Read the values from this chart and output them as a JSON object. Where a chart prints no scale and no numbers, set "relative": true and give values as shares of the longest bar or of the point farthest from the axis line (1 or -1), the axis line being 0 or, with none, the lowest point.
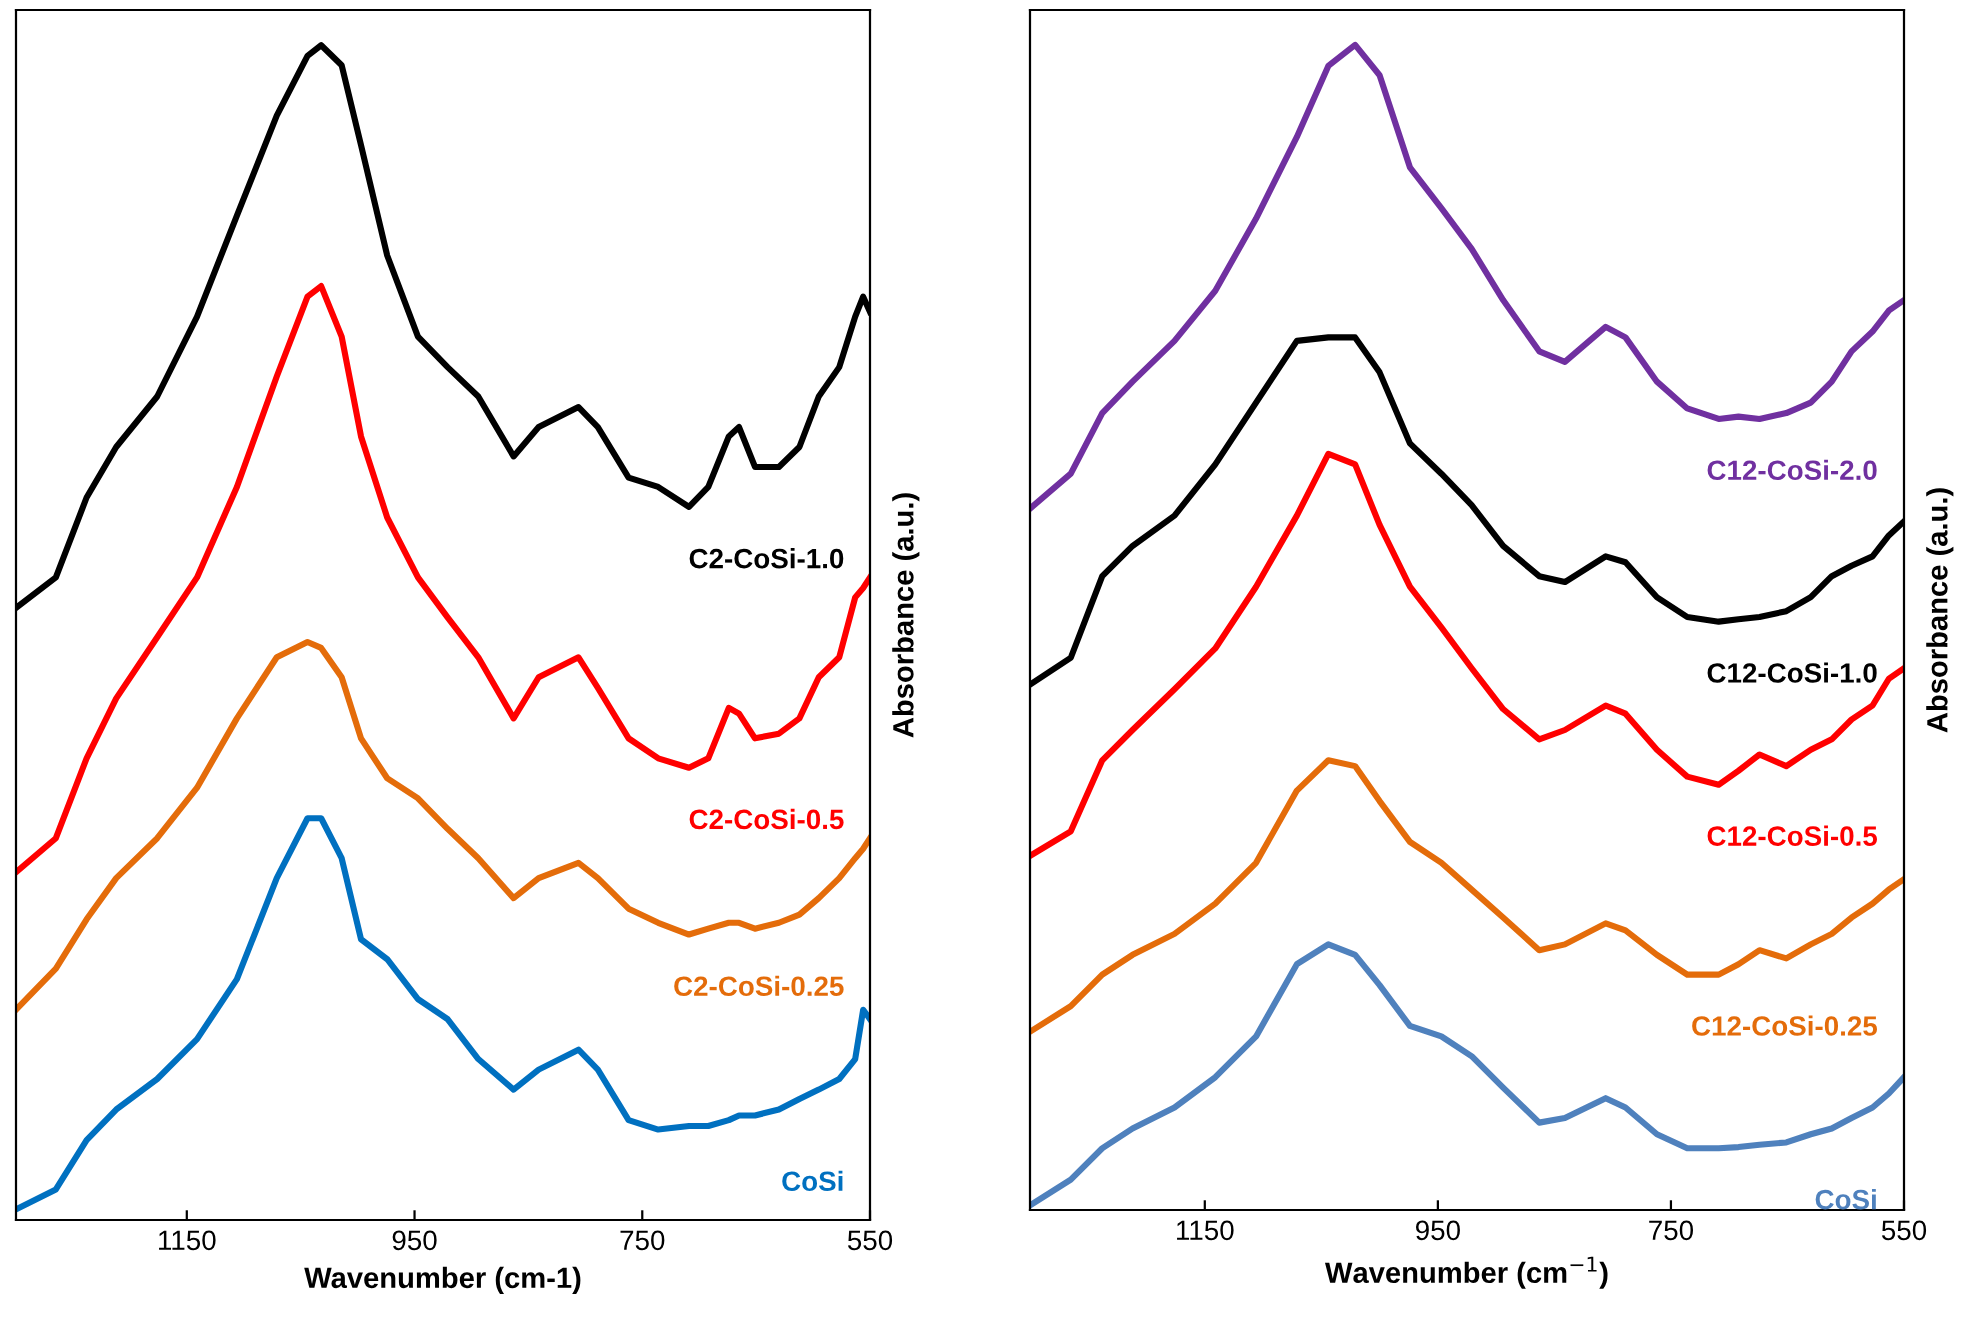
{
  "chart_data": [
    {
      "type": "line",
      "xlabel": "Wavenumber (cm-1)",
      "ylabel": "Absorbance (a.u.)",
      "relative": true,
      "xlim": [
        1300,
        550
      ],
      "xticks": [
        1150,
        950,
        750,
        550
      ],
      "grid": false,
      "legend": false,
      "line_style": "solid",
      "marker": "none",
      "tick_labels": "x",
      "series": [
        {
          "name": "C2-CoSi-1.0",
          "color": "#000000",
          "x": [
            1300,
            1265,
            1238,
            1212,
            1176,
            1141,
            1106,
            1071,
            1044,
            1032,
            1014,
            997,
            974,
            947,
            921,
            894,
            863,
            841,
            806,
            789,
            762,
            736,
            709,
            692,
            674,
            665,
            651,
            630,
            612,
            595,
            577,
            563,
            556,
            550
          ],
          "values": [
            0.521,
            0.547,
            0.615,
            0.658,
            0.701,
            0.769,
            0.855,
            0.94,
            0.991,
            1.0,
            0.983,
            0.915,
            0.821,
            0.752,
            0.726,
            0.701,
            0.65,
            0.675,
            0.692,
            0.675,
            0.632,
            0.624,
            0.607,
            0.624,
            0.667,
            0.675,
            0.641,
            0.641,
            0.658,
            0.701,
            0.726,
            0.769,
            0.786,
            0.773
          ]
        },
        {
          "name": "C2-CoSi-0.5",
          "color": "#ff0000",
          "x": [
            1300,
            1265,
            1238,
            1212,
            1176,
            1141,
            1106,
            1071,
            1044,
            1032,
            1014,
            997,
            974,
            947,
            921,
            894,
            863,
            841,
            806,
            789,
            762,
            736,
            709,
            692,
            674,
            665,
            651,
            630,
            612,
            595,
            577,
            563,
            556,
            550
          ],
          "values": [
            0.296,
            0.325,
            0.393,
            0.444,
            0.496,
            0.547,
            0.624,
            0.718,
            0.786,
            0.795,
            0.752,
            0.667,
            0.598,
            0.547,
            0.513,
            0.479,
            0.427,
            0.462,
            0.479,
            0.453,
            0.41,
            0.393,
            0.385,
            0.393,
            0.436,
            0.431,
            0.41,
            0.414,
            0.427,
            0.462,
            0.479,
            0.53,
            0.538,
            0.547
          ]
        },
        {
          "name": "C2-CoSi-0.25",
          "color": "#e46c0a",
          "x": [
            1300,
            1265,
            1238,
            1212,
            1176,
            1141,
            1106,
            1071,
            1044,
            1032,
            1014,
            997,
            974,
            947,
            921,
            894,
            863,
            841,
            806,
            789,
            762,
            736,
            709,
            692,
            674,
            665,
            651,
            630,
            612,
            595,
            577,
            563,
            556,
            550
          ],
          "values": [
            0.179,
            0.214,
            0.256,
            0.291,
            0.325,
            0.368,
            0.427,
            0.479,
            0.492,
            0.487,
            0.462,
            0.41,
            0.376,
            0.359,
            0.333,
            0.308,
            0.274,
            0.291,
            0.304,
            0.291,
            0.265,
            0.253,
            0.243,
            0.248,
            0.253,
            0.253,
            0.248,
            0.253,
            0.26,
            0.274,
            0.291,
            0.308,
            0.316,
            0.325
          ]
        },
        {
          "name": "CoSi",
          "color": "#0070c0",
          "x": [
            1300,
            1265,
            1238,
            1212,
            1176,
            1141,
            1106,
            1071,
            1044,
            1032,
            1014,
            997,
            974,
            947,
            921,
            894,
            863,
            841,
            806,
            789,
            762,
            736,
            709,
            692,
            674,
            665,
            651,
            630,
            612,
            595,
            577,
            563,
            556,
            550
          ],
          "values": [
            0.009,
            0.026,
            0.068,
            0.094,
            0.12,
            0.154,
            0.205,
            0.291,
            0.342,
            0.342,
            0.308,
            0.239,
            0.222,
            0.188,
            0.171,
            0.137,
            0.111,
            0.128,
            0.145,
            0.128,
            0.085,
            0.077,
            0.08,
            0.08,
            0.085,
            0.089,
            0.089,
            0.094,
            0.103,
            0.111,
            0.12,
            0.137,
            0.179,
            0.171
          ]
        }
      ]
    },
    {
      "type": "line",
      "xlabel": "Wavenumber (cm$^{−1}$)",
      "ylabel": "Absorbance (a.u.)",
      "relative": true,
      "xlim": [
        1300,
        550
      ],
      "xticks": [
        1150,
        950,
        750,
        550
      ],
      "grid": false,
      "legend": false,
      "line_style": "solid",
      "marker": "none",
      "tick_labels": "x",
      "series": [
        {
          "name": "C12-CoSi-2.0",
          "color": "#7030a0",
          "x": [
            1300,
            1265,
            1238,
            1212,
            1176,
            1141,
            1106,
            1071,
            1044,
            1021,
            1000,
            974,
            947,
            921,
            894,
            863,
            841,
            806,
            789,
            762,
            736,
            709,
            692,
            674,
            651,
            630,
            612,
            595,
            577,
            563,
            550
          ],
          "values": [
            0.602,
            0.632,
            0.684,
            0.711,
            0.746,
            0.789,
            0.851,
            0.921,
            0.982,
            1.0,
            0.974,
            0.895,
            0.86,
            0.825,
            0.781,
            0.737,
            0.728,
            0.758,
            0.749,
            0.711,
            0.688,
            0.679,
            0.681,
            0.679,
            0.684,
            0.693,
            0.711,
            0.737,
            0.754,
            0.772,
            0.781
          ]
        },
        {
          "name": "C12-CoSi-1.0",
          "color": "#000000",
          "x": [
            1300,
            1265,
            1238,
            1212,
            1176,
            1141,
            1106,
            1071,
            1044,
            1021,
            1000,
            974,
            947,
            921,
            894,
            863,
            841,
            806,
            789,
            762,
            736,
            709,
            692,
            674,
            651,
            630,
            612,
            595,
            577,
            563,
            550
          ],
          "values": [
            0.451,
            0.474,
            0.544,
            0.57,
            0.596,
            0.64,
            0.693,
            0.746,
            0.749,
            0.749,
            0.719,
            0.658,
            0.632,
            0.605,
            0.57,
            0.544,
            0.539,
            0.561,
            0.556,
            0.526,
            0.509,
            0.505,
            0.507,
            0.509,
            0.514,
            0.526,
            0.544,
            0.553,
            0.561,
            0.579,
            0.591
          ]
        },
        {
          "name": "C12-CoSi-0.5",
          "color": "#ff0000",
          "x": [
            1300,
            1265,
            1238,
            1212,
            1176,
            1141,
            1106,
            1071,
            1044,
            1021,
            1000,
            974,
            947,
            921,
            894,
            863,
            841,
            806,
            789,
            762,
            736,
            709,
            692,
            674,
            651,
            630,
            612,
            595,
            577,
            563,
            550
          ],
          "values": [
            0.304,
            0.325,
            0.386,
            0.412,
            0.447,
            0.482,
            0.535,
            0.596,
            0.649,
            0.64,
            0.588,
            0.535,
            0.5,
            0.465,
            0.43,
            0.404,
            0.412,
            0.433,
            0.426,
            0.395,
            0.372,
            0.365,
            0.377,
            0.391,
            0.381,
            0.395,
            0.404,
            0.421,
            0.433,
            0.456,
            0.465
          ]
        },
        {
          "name": "C12-CoSi-0.25",
          "color": "#e46c0a",
          "x": [
            1300,
            1265,
            1238,
            1212,
            1176,
            1141,
            1106,
            1071,
            1044,
            1021,
            1000,
            974,
            947,
            921,
            894,
            863,
            841,
            806,
            789,
            762,
            736,
            709,
            692,
            674,
            651,
            630,
            612,
            595,
            577,
            563,
            550
          ],
          "values": [
            0.153,
            0.175,
            0.202,
            0.219,
            0.237,
            0.263,
            0.298,
            0.36,
            0.386,
            0.381,
            0.351,
            0.316,
            0.298,
            0.275,
            0.251,
            0.223,
            0.228,
            0.246,
            0.24,
            0.219,
            0.202,
            0.202,
            0.211,
            0.223,
            0.216,
            0.228,
            0.237,
            0.251,
            0.263,
            0.275,
            0.284
          ]
        },
        {
          "name": "CoSi",
          "color": "#4f81bd",
          "x": [
            1300,
            1265,
            1238,
            1212,
            1176,
            1141,
            1106,
            1071,
            1044,
            1021,
            1000,
            974,
            947,
            921,
            894,
            863,
            841,
            806,
            789,
            762,
            736,
            709,
            692,
            674,
            651,
            630,
            612,
            595,
            577,
            563,
            550
          ],
          "values": [
            0.004,
            0.026,
            0.053,
            0.07,
            0.088,
            0.114,
            0.149,
            0.211,
            0.228,
            0.219,
            0.193,
            0.158,
            0.149,
            0.132,
            0.105,
            0.075,
            0.079,
            0.096,
            0.088,
            0.065,
            0.053,
            0.053,
            0.054,
            0.056,
            0.058,
            0.065,
            0.07,
            0.079,
            0.088,
            0.1,
            0.114
          ]
        }
      ]
    }
  ]
}
